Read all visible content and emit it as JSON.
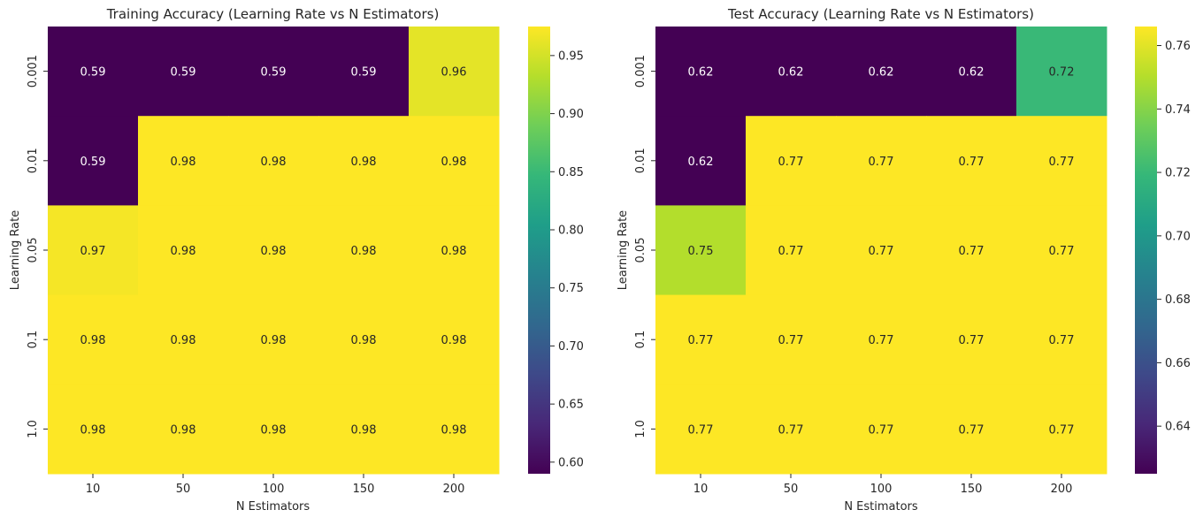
{
  "colormap": {
    "name": "viridis",
    "stops": [
      "#440154",
      "#482878",
      "#3e4989",
      "#31688e",
      "#26828e",
      "#1f9e89",
      "#35b779",
      "#6ece58",
      "#b5de2b",
      "#fde725"
    ]
  },
  "chart_data": [
    {
      "type": "heatmap",
      "title": "Training Accuracy (Learning Rate vs N Estimators)",
      "xlabel": "N Estimators",
      "ylabel": "Learning Rate",
      "x": [
        "10",
        "50",
        "100",
        "150",
        "200"
      ],
      "y": [
        "0.001",
        "0.01",
        "0.05",
        "0.1",
        "1.0"
      ],
      "values": [
        [
          0.59,
          0.59,
          0.59,
          0.59,
          0.96
        ],
        [
          0.59,
          0.98,
          0.98,
          0.98,
          0.98
        ],
        [
          0.97,
          0.98,
          0.98,
          0.98,
          0.98
        ],
        [
          0.98,
          0.98,
          0.98,
          0.98,
          0.98
        ],
        [
          0.98,
          0.98,
          0.98,
          0.98,
          0.98
        ]
      ],
      "labels": [
        [
          "0.59",
          "0.59",
          "0.59",
          "0.59",
          "0.96"
        ],
        [
          "0.59",
          "0.98",
          "0.98",
          "0.98",
          "0.98"
        ],
        [
          "0.97",
          "0.98",
          "0.98",
          "0.98",
          "0.98"
        ],
        [
          "0.98",
          "0.98",
          "0.98",
          "0.98",
          "0.98"
        ],
        [
          "0.98",
          "0.98",
          "0.98",
          "0.98",
          "0.98"
        ]
      ],
      "colorbar": {
        "range": [
          0.59,
          0.975
        ],
        "ticks": [
          "0.60",
          "0.65",
          "0.70",
          "0.75",
          "0.80",
          "0.85",
          "0.90",
          "0.95"
        ]
      }
    },
    {
      "type": "heatmap",
      "title": "Test Accuracy (Learning Rate vs N Estimators)",
      "xlabel": "N Estimators",
      "ylabel": "Learning Rate",
      "x": [
        "10",
        "50",
        "100",
        "150",
        "200"
      ],
      "y": [
        "0.001",
        "0.01",
        "0.05",
        "0.1",
        "1.0"
      ],
      "values": [
        [
          0.62,
          0.62,
          0.62,
          0.62,
          0.72
        ],
        [
          0.62,
          0.77,
          0.77,
          0.77,
          0.77
        ],
        [
          0.75,
          0.77,
          0.77,
          0.77,
          0.77
        ],
        [
          0.77,
          0.77,
          0.77,
          0.77,
          0.77
        ],
        [
          0.77,
          0.77,
          0.77,
          0.77,
          0.77
        ]
      ],
      "labels": [
        [
          "0.62",
          "0.62",
          "0.62",
          "0.62",
          "0.72"
        ],
        [
          "0.62",
          "0.77",
          "0.77",
          "0.77",
          "0.77"
        ],
        [
          "0.75",
          "0.77",
          "0.77",
          "0.77",
          "0.77"
        ],
        [
          "0.77",
          "0.77",
          "0.77",
          "0.77",
          "0.77"
        ],
        [
          "0.77",
          "0.77",
          "0.77",
          "0.77",
          "0.77"
        ]
      ],
      "colorbar": {
        "range": [
          0.625,
          0.766
        ],
        "ticks": [
          "0.64",
          "0.66",
          "0.68",
          "0.70",
          "0.72",
          "0.74",
          "0.76"
        ]
      }
    }
  ]
}
